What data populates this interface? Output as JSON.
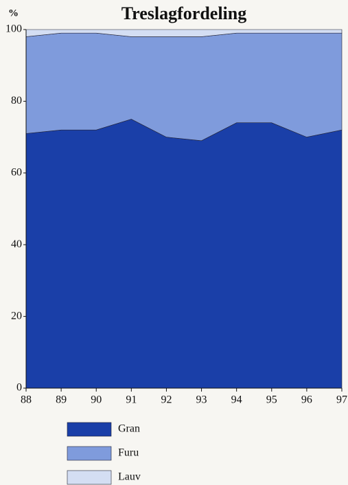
{
  "chart_data": {
    "type": "stacked-area",
    "title": "Treslagfordeling",
    "y_label": "%",
    "x": [
      88,
      89,
      90,
      91,
      92,
      93,
      94,
      95,
      96,
      97
    ],
    "xlim": [
      88,
      97
    ],
    "xticks": [
      88,
      89,
      90,
      91,
      92,
      93,
      94,
      95,
      96,
      97
    ],
    "ylim": [
      0,
      100
    ],
    "yticks": [
      0,
      20,
      40,
      60,
      80,
      100
    ],
    "series": [
      {
        "name": "Gran",
        "color": "#1a3fa8",
        "values": [
          71,
          72,
          72,
          75,
          70,
          69,
          74,
          74,
          70,
          72
        ]
      },
      {
        "name": "Furu",
        "color": "#7f9bdc",
        "values": [
          27,
          27,
          27,
          23,
          28,
          29,
          25,
          25,
          29,
          27
        ]
      },
      {
        "name": "Lauv",
        "color": "#d4def3",
        "values": [
          2,
          1,
          1,
          2,
          2,
          2,
          1,
          1,
          1,
          1
        ]
      }
    ]
  }
}
